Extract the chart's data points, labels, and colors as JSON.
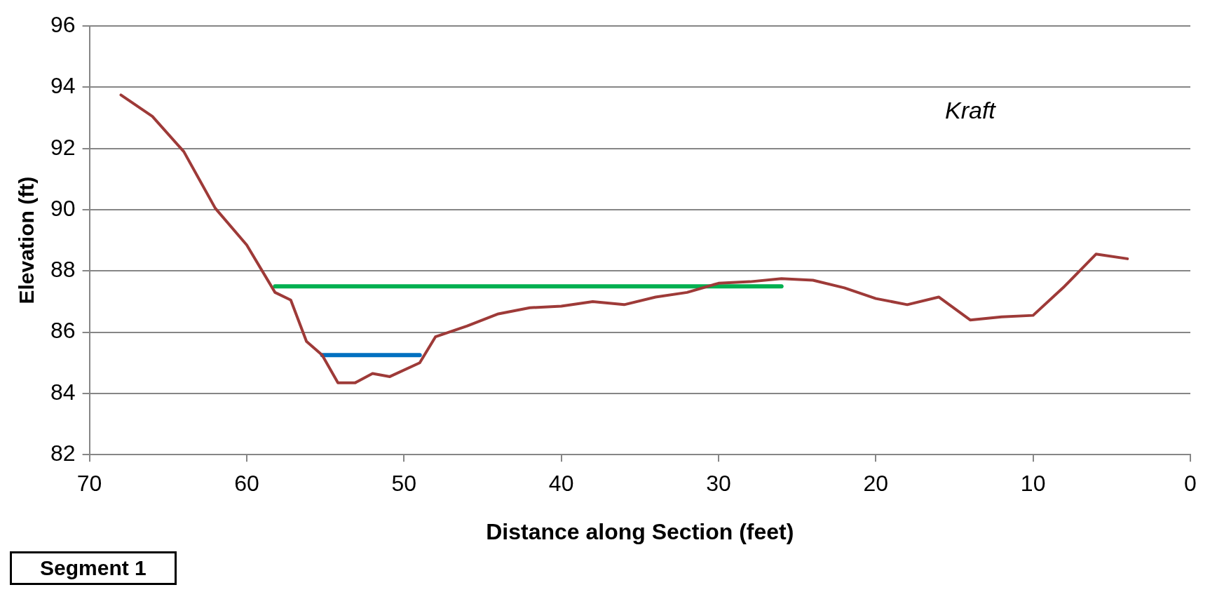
{
  "chart_data": {
    "type": "line",
    "xlabel": "Distance along Section (feet)",
    "ylabel": "Elevation (ft)",
    "xlim": [
      70,
      0
    ],
    "xticks": [
      70,
      60,
      50,
      40,
      30,
      20,
      10,
      0
    ],
    "ylim": [
      82,
      96
    ],
    "yticks": [
      82,
      84,
      86,
      88,
      90,
      92,
      94,
      96
    ],
    "grid": "y",
    "legend": false,
    "marker": "none",
    "line_style": "solid",
    "annotations": [
      "Kraft",
      "Segment 1"
    ],
    "series": [
      {
        "color": "#9e3a38",
        "x": [
          68,
          66,
          64,
          62,
          60,
          58.2,
          57.2,
          56.2,
          55.2,
          54.2,
          53.1,
          52,
          50.9,
          49,
          48,
          46,
          44,
          42,
          40,
          38,
          36,
          34,
          32,
          30,
          28,
          26,
          24,
          22,
          20,
          18,
          16,
          14,
          12,
          10,
          8,
          6,
          4
        ],
        "values": [
          93.75,
          93.05,
          91.9,
          90.05,
          88.85,
          87.3,
          87.05,
          85.7,
          85.25,
          84.35,
          84.35,
          84.65,
          84.55,
          85.0,
          85.85,
          86.2,
          86.6,
          86.8,
          86.85,
          87.0,
          86.9,
          87.15,
          87.3,
          87.6,
          87.65,
          87.75,
          87.7,
          87.45,
          87.1,
          86.9,
          87.15,
          86.4,
          86.5,
          86.55,
          87.5,
          88.55,
          88.4
        ]
      },
      {
        "color": "#00b050",
        "x": [
          58.2,
          26
        ],
        "values": [
          87.5,
          87.5
        ]
      },
      {
        "color": "#0070c0",
        "x": [
          55.2,
          49
        ],
        "values": [
          85.25,
          85.25
        ]
      }
    ]
  }
}
